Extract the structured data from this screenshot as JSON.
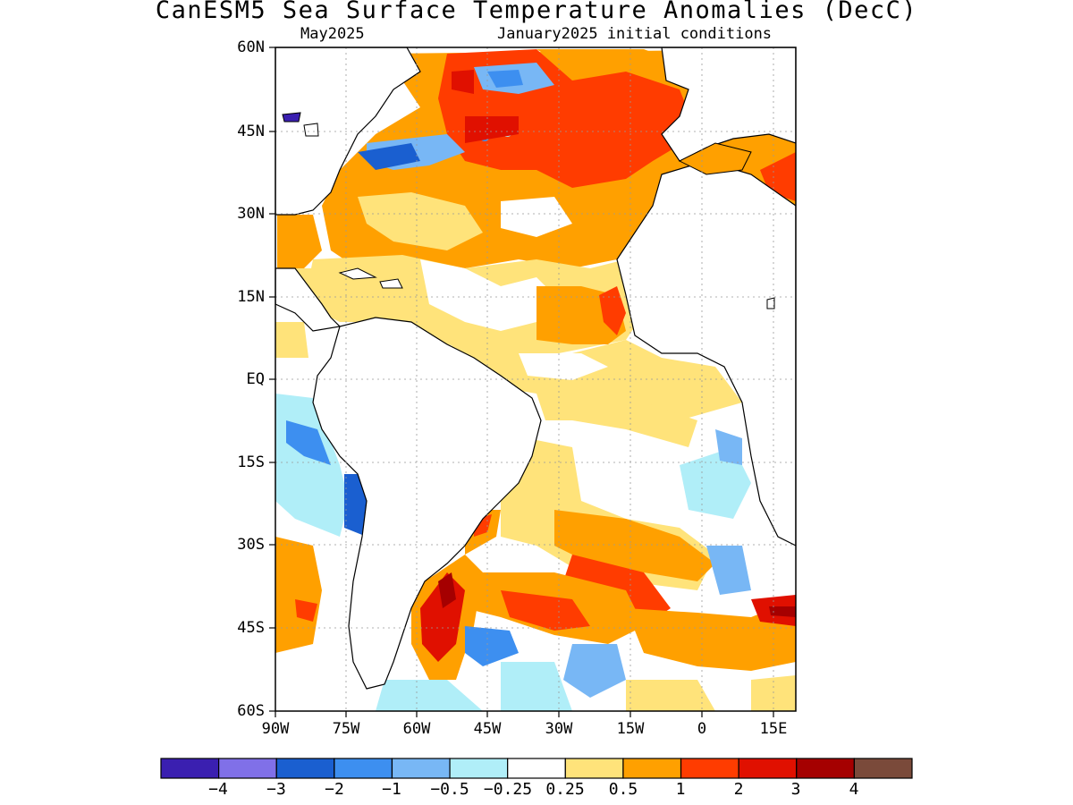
{
  "title": "CanESM5 Sea Surface Temperature Anomalies (DecC)",
  "subtitle_left": "May2025",
  "subtitle_right": "January2025 initial conditions",
  "map": {
    "lat_labels": [
      "60N",
      "45N",
      "30N",
      "15N",
      "EQ",
      "15S",
      "30S",
      "45S",
      "60S"
    ],
    "lon_labels": [
      "90W",
      "75W",
      "60W",
      "45W",
      "30W",
      "15W",
      "0",
      "15E"
    ]
  },
  "colorbar": {
    "colors": [
      "#3a1fb0",
      "#8070e8",
      "#1a5fd0",
      "#3d8ff0",
      "#78b7f5",
      "#b0eef8",
      "#ffffff",
      "#ffe37a",
      "#ffa000",
      "#ff3c00",
      "#e01000",
      "#a50000",
      "#7a4a3a"
    ],
    "labels": [
      "−4",
      "−3",
      "−2",
      "−1",
      "−0.5",
      "−0.25",
      "0.25",
      "0.5",
      "1",
      "2",
      "3",
      "4"
    ]
  }
}
